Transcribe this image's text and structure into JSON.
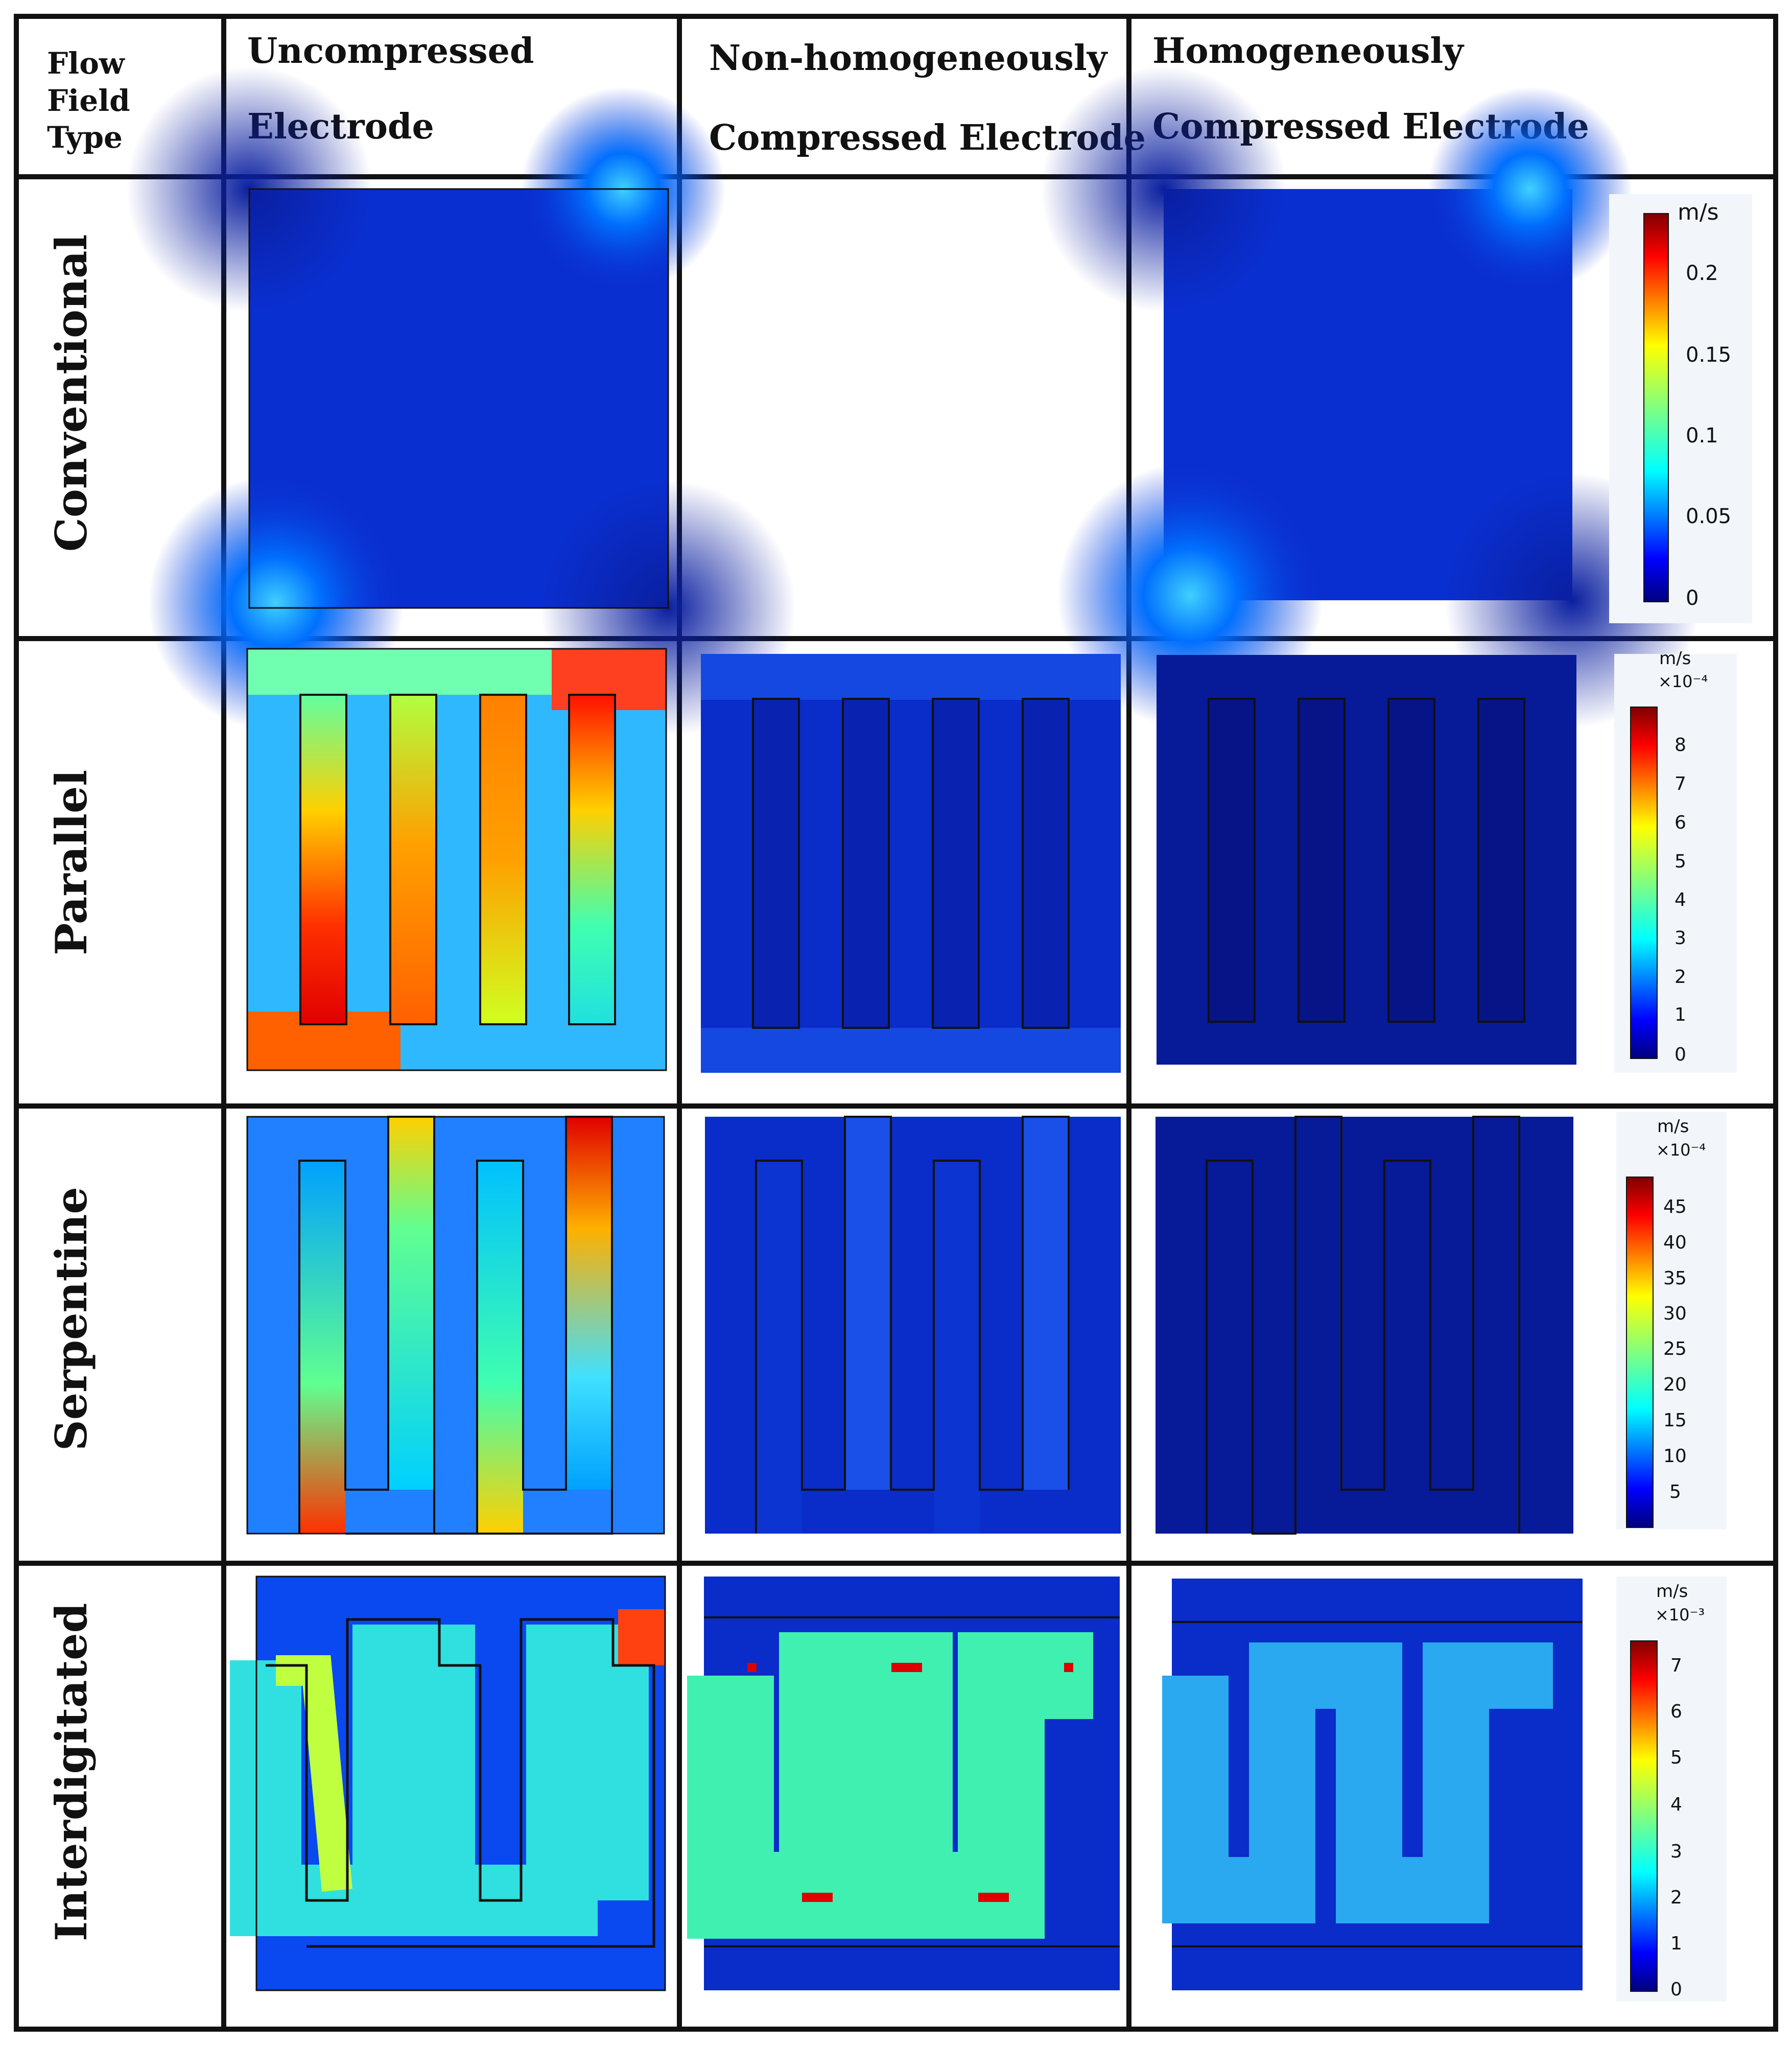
{
  "header": {
    "corner_lines": [
      "Flow",
      "Field",
      "Type"
    ],
    "uncompressed_lines": [
      "Uncompressed",
      "Electrode"
    ],
    "nonhomogeneous_lines": [
      "Non-homogeneously",
      "Compressed Electrode"
    ],
    "homogeneous_lines": [
      "Homogeneously",
      "Compressed Electrode"
    ]
  },
  "rows": [
    {
      "key": "conventional",
      "label": "Conventional"
    },
    {
      "key": "parallel",
      "label": "Parallel"
    },
    {
      "key": "serpentine",
      "label": "Serpentine"
    },
    {
      "key": "interdigitated",
      "label": "Interdigitated"
    }
  ],
  "colorbars": {
    "conventional": {
      "unit": "m/s",
      "exponent": "",
      "ticks": [
        "0.2",
        "0.15",
        "0.1",
        "0.05",
        "0"
      ]
    },
    "parallel": {
      "unit": "m/s",
      "exponent": "×10⁻⁴",
      "ticks": [
        "8",
        "7",
        "6",
        "5",
        "4",
        "3",
        "2",
        "1",
        "0"
      ]
    },
    "serpentine": {
      "unit": "m/s",
      "exponent": "×10⁻⁴",
      "ticks": [
        "45",
        "40",
        "35",
        "30",
        "25",
        "20",
        "15",
        "10",
        "5"
      ]
    },
    "interdigitated": {
      "unit": "m/s",
      "exponent": "×10⁻³",
      "ticks": [
        "7",
        "6",
        "5",
        "4",
        "3",
        "2",
        "1",
        "0"
      ]
    }
  },
  "colors": {
    "grid_line": "#111111",
    "jet": [
      "#00007f",
      "#0000ff",
      "#0080ff",
      "#00ffff",
      "#80ff80",
      "#ffff00",
      "#ff8000",
      "#ff0000",
      "#7f0000"
    ]
  }
}
